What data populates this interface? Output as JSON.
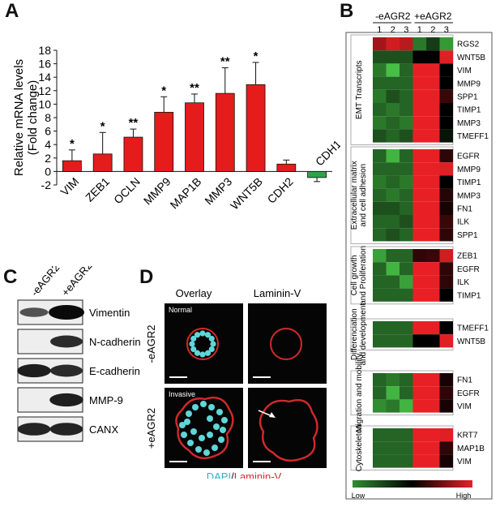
{
  "panels": {
    "a": "A",
    "b": "B",
    "c": "C",
    "d": "D"
  },
  "chart_data": {
    "type": "bar",
    "ylabel": "Relative mRNA levels (Fold change)",
    "ylabel_lines": [
      "Relative mRNA levels",
      "(Fold change)"
    ],
    "ylim": [
      -2,
      18
    ],
    "yticks": [
      "-2",
      "0",
      "2",
      "4",
      "6",
      "8",
      "10",
      "12",
      "14",
      "16",
      "18"
    ],
    "categories": [
      "VIM",
      "ZEB1",
      "OCLN",
      "MMP9",
      "MAP1B",
      "MMP3",
      "WNT5B",
      "CDH2",
      "CDH1"
    ],
    "values": [
      1.6,
      2.6,
      5.1,
      8.8,
      10.2,
      11.6,
      12.9,
      1.1,
      -0.9
    ],
    "errors": [
      1.6,
      3.2,
      1.2,
      2.3,
      1.3,
      3.8,
      3.3,
      0.6,
      0.6
    ],
    "significance": [
      "*",
      "*",
      "**",
      "*",
      "**",
      "**",
      "*",
      "",
      ""
    ],
    "colors": {
      "positive": "#e41c1c",
      "negative": "#2fa34a"
    }
  },
  "heatmap": {
    "header": {
      "neg": "-eAGR2",
      "pos": "+eAGR2",
      "reps": [
        "1",
        "2",
        "3",
        "1",
        "2",
        "3"
      ]
    },
    "legend": {
      "low": "Low",
      "high": "High"
    },
    "blocks": [
      {
        "label": "EMT Transcripts",
        "genes": [
          "RGS2",
          "WNT5B",
          "VIM",
          "MMP9",
          "SPP1",
          "TIMP1",
          "MMP3",
          "TMEFF1"
        ],
        "values": [
          [
            0.85,
            0.95,
            0.9,
            0.2,
            0.35,
            0.12
          ],
          [
            0.3,
            0.3,
            0.3,
            0.5,
            0.5,
            0.98
          ],
          [
            0.2,
            0.02,
            0.25,
            1,
            1,
            0.5
          ],
          [
            0.25,
            0.25,
            0.25,
            1,
            1,
            0.5
          ],
          [
            0.2,
            0.3,
            0.25,
            1,
            1,
            0.62
          ],
          [
            0.25,
            0.2,
            0.25,
            1,
            1,
            0.5
          ],
          [
            0.2,
            0.25,
            0.2,
            1,
            1,
            0.5
          ],
          [
            0.3,
            0.25,
            0.3,
            1,
            1,
            0.45
          ]
        ]
      },
      {
        "label": "Extracellular matrix and cell adhesion",
        "genes": [
          "EGFR",
          "MMP9",
          "TIMP1",
          "MMP3",
          "FN1",
          "ILK",
          "SPP1"
        ],
        "values": [
          [
            0.25,
            0.05,
            0.25,
            1,
            1,
            0.6
          ],
          [
            0.25,
            0.25,
            0.25,
            1,
            1,
            0.98
          ],
          [
            0.2,
            0.25,
            0.2,
            1,
            1,
            0.5
          ],
          [
            0.25,
            0.2,
            0.25,
            1,
            1,
            0.58
          ],
          [
            0.3,
            0.3,
            0.25,
            1,
            1,
            0.55
          ],
          [
            0.25,
            0.25,
            0.3,
            1,
            1,
            0.62
          ],
          [
            0.25,
            0.3,
            0.25,
            1,
            1,
            0.6
          ]
        ]
      },
      {
        "label": "Cell growth and Proliferation",
        "genes": [
          "ZEB1",
          "EGFR",
          "ILK",
          "TIMP1"
        ],
        "values": [
          [
            0.1,
            0.25,
            0.25,
            0.6,
            0.62,
            0.95
          ],
          [
            0.25,
            0.05,
            0.25,
            1,
            1,
            0.6
          ],
          [
            0.25,
            0.25,
            0.1,
            1,
            1,
            0.6
          ],
          [
            0.25,
            0.25,
            0.25,
            1,
            1,
            0.5
          ]
        ]
      },
      {
        "label": "Differenciation and development",
        "genes": [
          "TMEFF1",
          "WNT5B"
        ],
        "values": [
          [
            0.25,
            0.25,
            0.25,
            1,
            1,
            0.5
          ],
          [
            0.25,
            0.25,
            0.25,
            0.5,
            0.5,
            0.98
          ]
        ]
      },
      {
        "label": "Migration and mobility",
        "genes": [
          "FN1",
          "EGFR",
          "VIM"
        ],
        "values": [
          [
            0.25,
            0.2,
            0.25,
            1,
            1,
            0.55
          ],
          [
            0.25,
            0.05,
            0.25,
            1,
            1,
            0.6
          ],
          [
            0.15,
            0.2,
            0.05,
            1,
            1,
            0.55
          ]
        ]
      },
      {
        "label": "Cytoskeleton",
        "genes": [
          "KRT7",
          "MAP1B",
          "VIM"
        ],
        "values": [
          [
            0.25,
            0.25,
            0.25,
            1,
            1,
            0.98
          ],
          [
            0.25,
            0.25,
            0.25,
            1,
            1,
            0.6
          ],
          [
            0.25,
            0.25,
            0.25,
            1,
            1,
            0.55
          ]
        ]
      }
    ]
  },
  "western": {
    "conditions": [
      "-eAGR2",
      "+eAGR2"
    ],
    "proteins": [
      "Vimentin",
      "N-cadherin",
      "E-cadherin",
      "MMP-9",
      "CANX"
    ],
    "levels": [
      [
        0.45,
        1.0
      ],
      [
        0.0,
        0.75
      ],
      [
        0.85,
        0.75
      ],
      [
        0.0,
        0.85
      ],
      [
        0.8,
        0.8
      ]
    ]
  },
  "microscopy": {
    "columns": [
      "Overlay",
      "Laminin-V"
    ],
    "rows": [
      "-eAGR2",
      "+eAGR2"
    ],
    "phenotypes": [
      "Normal",
      "Invasive"
    ],
    "stain_legend": {
      "dapi": "DAPI",
      "sep": "/",
      "laminin": "Laminin-V"
    }
  }
}
